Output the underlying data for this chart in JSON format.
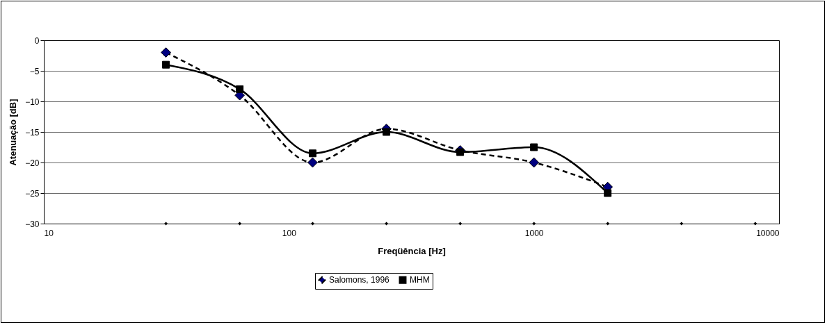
{
  "chart_data": {
    "type": "line",
    "xlabel": "Freqüência [Hz]",
    "ylabel": "Atenuação [dB]",
    "log": "x",
    "xlim": [
      10,
      10000
    ],
    "xticks": [
      10,
      100,
      1000,
      10000
    ],
    "ylim": [
      -30,
      0
    ],
    "yticks": [
      -30,
      -25,
      -20,
      -15,
      -10,
      -5,
      0
    ],
    "grid": "y",
    "legend": "bottom",
    "series": [
      {
        "name": "Salomons, 1996",
        "color": "#000080",
        "marker": "diamond",
        "line_style": "dashed",
        "x": [
          31.5,
          63,
          125,
          250,
          500,
          1000,
          2000
        ],
        "values": [
          -2,
          -9,
          -20,
          -14.5,
          -18,
          -20,
          -24
        ]
      },
      {
        "name": "MHM",
        "color": "#000000",
        "marker": "square",
        "line_style": "solid",
        "x": [
          31.5,
          63,
          125,
          250,
          500,
          1000,
          2000
        ],
        "values": [
          -4,
          -8,
          -18.5,
          -15,
          -18.3,
          -17.5,
          -25
        ]
      },
      {
        "type": "scatter",
        "color": "#000000",
        "marker": "diamond",
        "x": [
          31.5,
          63,
          125,
          250,
          500,
          1000,
          2000,
          4000,
          8000
        ],
        "values": [
          -30,
          -30,
          -30,
          -30,
          -30,
          -30,
          -30,
          -30,
          -30
        ]
      }
    ]
  }
}
